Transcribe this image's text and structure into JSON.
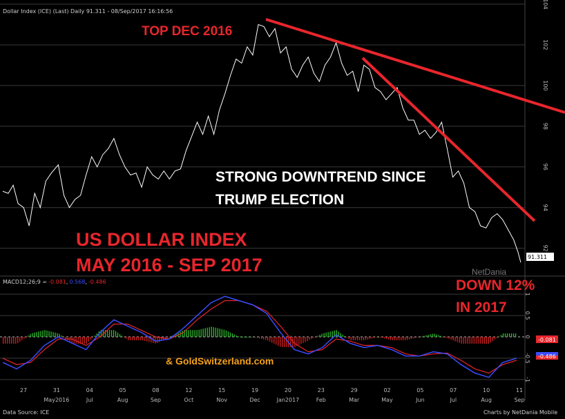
{
  "header": {
    "title": "Dollar Index (ICE) (Last) Daily 91.311 - 08/Sep/2017 16:16:56",
    "macd_label": "MACD12;26;9 =",
    "macd_v1": "-0.081",
    "macd_v2": "0.568",
    "macd_v3": "-0.486"
  },
  "footer": {
    "source": "Data Source: ICE",
    "credit": "Charts by NetDania Mobile"
  },
  "watermark": "NetDania",
  "annotations": {
    "top": "TOP DEC 2016",
    "trend1": "STRONG DOWNTREND SINCE",
    "trend2": "TRUMP ELECTION",
    "title1": "US DOLLAR INDEX",
    "title2": "MAY 2016 - SEP 2017",
    "down1": "DOWN 12%",
    "down2": "IN 2017",
    "site": "& GoldSwitzerland.com"
  },
  "colors": {
    "price_line": "#ffffff",
    "trend_line": "#e8262c",
    "macd_red": "#e8262c",
    "macd_blue": "#3b4cff",
    "hist_pos": "#2fbf2f",
    "hist_neg": "#d42020",
    "grid": "#3a3a3a",
    "bg": "#000000"
  },
  "chart_data": [
    {
      "type": "line",
      "title": "Dollar Index (ICE) Daily",
      "ylim": [
        90.8,
        104
      ],
      "y_ticks": [
        "104",
        "102",
        "100",
        "98",
        "96",
        "94",
        "92"
      ],
      "last_value": "91.311",
      "x_labels": [
        {
          "day": "27",
          "month": ""
        },
        {
          "day": "31",
          "month": "May2016"
        },
        {
          "day": "04",
          "month": "Jul"
        },
        {
          "day": "05",
          "month": "Aug"
        },
        {
          "day": "08",
          "month": "Sep"
        },
        {
          "day": "12",
          "month": "Oct"
        },
        {
          "day": "15",
          "month": "Nov"
        },
        {
          "day": "19",
          "month": "Dec"
        },
        {
          "day": "20",
          "month": "Jan2017"
        },
        {
          "day": "23",
          "month": "Feb"
        },
        {
          "day": "29",
          "month": "Mar"
        },
        {
          "day": "02",
          "month": "May"
        },
        {
          "day": "05",
          "month": "Jun"
        },
        {
          "day": "07",
          "month": "Jul"
        },
        {
          "day": "10",
          "month": "Aug"
        },
        {
          "day": "11",
          "month": "Sep"
        }
      ],
      "series": [
        {
          "values": [
            [
              0,
              94.8
            ],
            [
              8,
              94.7
            ],
            [
              15,
              95.1
            ],
            [
              22,
              94.2
            ],
            [
              30,
              94.0
            ],
            [
              38,
              93.1
            ],
            [
              46,
              94.7
            ],
            [
              54,
              94.0
            ],
            [
              62,
              95.3
            ],
            [
              70,
              95.7
            ],
            [
              80,
              96.1
            ],
            [
              88,
              94.6
            ],
            [
              96,
              94.0
            ],
            [
              104,
              94.4
            ],
            [
              112,
              94.6
            ],
            [
              120,
              95.6
            ],
            [
              128,
              96.5
            ],
            [
              136,
              96.0
            ],
            [
              144,
              96.6
            ],
            [
              152,
              96.9
            ],
            [
              160,
              97.4
            ],
            [
              168,
              96.6
            ],
            [
              176,
              96.0
            ],
            [
              184,
              95.6
            ],
            [
              192,
              95.7
            ],
            [
              200,
              95.0
            ],
            [
              208,
              96.0
            ],
            [
              216,
              95.6
            ],
            [
              224,
              95.4
            ],
            [
              232,
              95.8
            ],
            [
              240,
              95.4
            ],
            [
              248,
              95.8
            ],
            [
              256,
              95.9
            ],
            [
              264,
              96.8
            ],
            [
              272,
              97.5
            ],
            [
              280,
              98.2
            ],
            [
              288,
              97.6
            ],
            [
              296,
              98.5
            ],
            [
              304,
              97.6
            ],
            [
              312,
              98.8
            ],
            [
              320,
              99.6
            ],
            [
              328,
              100.5
            ],
            [
              336,
              101.3
            ],
            [
              344,
              101.1
            ],
            [
              352,
              101.9
            ],
            [
              360,
              101.5
            ],
            [
              368,
              103.0
            ],
            [
              376,
              102.9
            ],
            [
              384,
              102.4
            ],
            [
              392,
              102.8
            ],
            [
              400,
              101.6
            ],
            [
              408,
              101.9
            ],
            [
              416,
              100.8
            ],
            [
              424,
              100.4
            ],
            [
              432,
              101.0
            ],
            [
              440,
              101.4
            ],
            [
              448,
              100.6
            ],
            [
              456,
              100.2
            ],
            [
              464,
              101.0
            ],
            [
              472,
              101.4
            ],
            [
              480,
              102.1
            ],
            [
              488,
              101.1
            ],
            [
              496,
              100.5
            ],
            [
              504,
              100.7
            ],
            [
              512,
              99.7
            ],
            [
              520,
              101.0
            ],
            [
              528,
              100.8
            ],
            [
              536,
              99.9
            ],
            [
              544,
              99.7
            ],
            [
              552,
              99.3
            ],
            [
              560,
              99.6
            ],
            [
              568,
              99.9
            ],
            [
              576,
              98.9
            ],
            [
              584,
              98.3
            ],
            [
              592,
              98.3
            ],
            [
              600,
              97.6
            ],
            [
              608,
              97.8
            ],
            [
              616,
              97.4
            ],
            [
              624,
              97.7
            ],
            [
              632,
              98.2
            ],
            [
              640,
              96.9
            ],
            [
              648,
              95.5
            ],
            [
              656,
              95.8
            ],
            [
              664,
              95.2
            ],
            [
              672,
              94.0
            ],
            [
              680,
              93.8
            ],
            [
              688,
              93.1
            ],
            [
              696,
              93.0
            ],
            [
              704,
              93.5
            ],
            [
              712,
              93.7
            ],
            [
              720,
              93.4
            ],
            [
              728,
              92.9
            ],
            [
              736,
              92.4
            ],
            [
              742,
              91.8
            ],
            [
              746,
              91.3
            ]
          ]
        }
      ]
    },
    {
      "type": "line",
      "title": "MACD12;26;9",
      "ylim": [
        -1.1,
        1.1
      ],
      "y_ticks": [
        "1",
        "0.5",
        "0",
        "-0.5",
        "-1"
      ],
      "series": [
        {
          "name": "MACD",
          "values": [
            [
              0,
              -0.6
            ],
            [
              20,
              -0.75
            ],
            [
              40,
              -0.55
            ],
            [
              60,
              -0.2
            ],
            [
              80,
              0.0
            ],
            [
              100,
              -0.15
            ],
            [
              120,
              -0.3
            ],
            [
              140,
              0.1
            ],
            [
              160,
              0.4
            ],
            [
              180,
              0.25
            ],
            [
              200,
              0.1
            ],
            [
              220,
              -0.1
            ],
            [
              240,
              -0.05
            ],
            [
              260,
              0.2
            ],
            [
              280,
              0.5
            ],
            [
              300,
              0.8
            ],
            [
              320,
              0.95
            ],
            [
              340,
              0.85
            ],
            [
              360,
              0.75
            ],
            [
              380,
              0.55
            ],
            [
              400,
              0.1
            ],
            [
              420,
              -0.3
            ],
            [
              440,
              -0.4
            ],
            [
              460,
              -0.25
            ],
            [
              480,
              0.05
            ],
            [
              500,
              -0.15
            ],
            [
              520,
              -0.25
            ],
            [
              540,
              -0.2
            ],
            [
              560,
              -0.3
            ],
            [
              580,
              -0.45
            ],
            [
              600,
              -0.45
            ],
            [
              620,
              -0.35
            ],
            [
              640,
              -0.4
            ],
            [
              660,
              -0.65
            ],
            [
              680,
              -0.85
            ],
            [
              700,
              -0.95
            ],
            [
              720,
              -0.6
            ],
            [
              740,
              -0.5
            ]
          ]
        },
        {
          "name": "Signal",
          "values": [
            [
              0,
              -0.5
            ],
            [
              20,
              -0.65
            ],
            [
              40,
              -0.6
            ],
            [
              60,
              -0.3
            ],
            [
              80,
              -0.05
            ],
            [
              100,
              -0.05
            ],
            [
              120,
              -0.2
            ],
            [
              140,
              0.0
            ],
            [
              160,
              0.3
            ],
            [
              180,
              0.3
            ],
            [
              200,
              0.15
            ],
            [
              220,
              0.0
            ],
            [
              240,
              -0.05
            ],
            [
              260,
              0.1
            ],
            [
              280,
              0.4
            ],
            [
              300,
              0.65
            ],
            [
              320,
              0.85
            ],
            [
              340,
              0.85
            ],
            [
              360,
              0.75
            ],
            [
              380,
              0.6
            ],
            [
              400,
              0.25
            ],
            [
              420,
              -0.15
            ],
            [
              440,
              -0.35
            ],
            [
              460,
              -0.3
            ],
            [
              480,
              -0.05
            ],
            [
              500,
              -0.1
            ],
            [
              520,
              -0.2
            ],
            [
              540,
              -0.2
            ],
            [
              560,
              -0.25
            ],
            [
              580,
              -0.4
            ],
            [
              600,
              -0.45
            ],
            [
              620,
              -0.4
            ],
            [
              640,
              -0.38
            ],
            [
              660,
              -0.55
            ],
            [
              680,
              -0.75
            ],
            [
              700,
              -0.85
            ],
            [
              720,
              -0.65
            ],
            [
              740,
              -0.55
            ]
          ]
        }
      ]
    }
  ]
}
